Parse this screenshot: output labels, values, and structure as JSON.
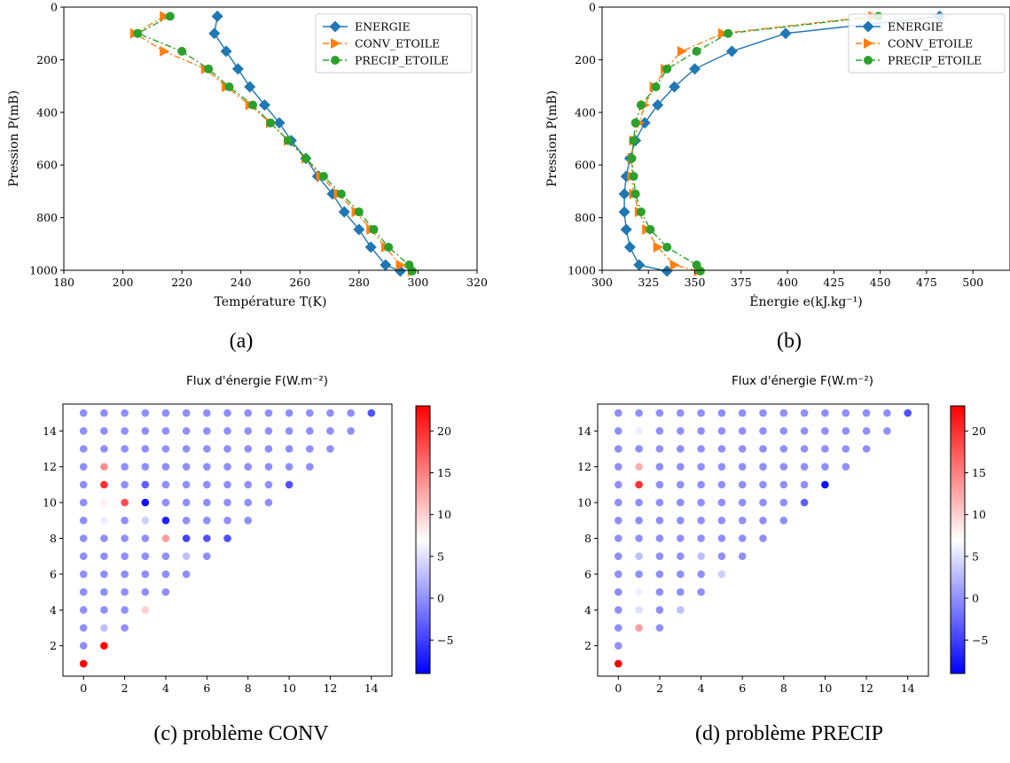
{
  "chart_data": [
    {
      "id": "a",
      "type": "line",
      "caption": "(a)",
      "xlabel": "Température T(K)",
      "ylabel": "Pression P(mB)",
      "xlim": [
        180,
        320
      ],
      "ylim": [
        1000,
        0
      ],
      "xticks": [
        180,
        200,
        220,
        240,
        260,
        280,
        300,
        320
      ],
      "yticks": [
        0,
        200,
        400,
        600,
        800,
        1000
      ],
      "legend_position": "top-right",
      "series": [
        {
          "name": "ENERGIE",
          "color": "#1f77b4",
          "marker": "diamond",
          "linestyle": "solid",
          "points": [
            [
              232,
              35
            ],
            [
              231,
              100
            ],
            [
              235,
              168
            ],
            [
              239,
              235
            ],
            [
              243,
              303
            ],
            [
              248,
              372
            ],
            [
              253,
              440
            ],
            [
              257,
              507
            ],
            [
              262,
              575
            ],
            [
              266,
              643
            ],
            [
              271,
              710
            ],
            [
              275,
              778
            ],
            [
              280,
              845
            ],
            [
              284,
              912
            ],
            [
              289,
              980
            ],
            [
              294,
              1003
            ]
          ]
        },
        {
          "name": "CONV_ETOILE",
          "color": "#ff7f0e",
          "marker": "triangle-right",
          "linestyle": "dashdot",
          "points": [
            [
              214,
              35
            ],
            [
              204,
              100
            ],
            [
              214,
              168
            ],
            [
              228,
              235
            ],
            [
              235,
              303
            ],
            [
              243,
              372
            ],
            [
              250,
              440
            ],
            [
              256,
              507
            ],
            [
              262,
              575
            ],
            [
              267,
              643
            ],
            [
              273,
              710
            ],
            [
              279,
              778
            ],
            [
              284,
              845
            ],
            [
              289,
              912
            ],
            [
              294,
              980
            ],
            [
              298,
              1003
            ]
          ]
        },
        {
          "name": "PRECIP_ETOILE",
          "color": "#2ca02c",
          "marker": "circle",
          "linestyle": "dashdot",
          "points": [
            [
              216,
              35
            ],
            [
              205,
              100
            ],
            [
              220,
              168
            ],
            [
              229,
              235
            ],
            [
              236,
              303
            ],
            [
              244,
              372
            ],
            [
              250,
              440
            ],
            [
              256,
              507
            ],
            [
              262,
              575
            ],
            [
              268,
              643
            ],
            [
              274,
              710
            ],
            [
              280,
              778
            ],
            [
              285,
              845
            ],
            [
              290,
              912
            ],
            [
              297,
              980
            ],
            [
              298,
              1003
            ]
          ]
        }
      ]
    },
    {
      "id": "b",
      "type": "line",
      "caption": "(b)",
      "xlabel": "Énergie e(kJ.kg⁻¹)",
      "ylabel": "Pression P(mB)",
      "xlim": [
        300,
        520
      ],
      "ylim": [
        1000,
        0
      ],
      "xticks": [
        300,
        325,
        350,
        375,
        400,
        425,
        450,
        475,
        500
      ],
      "yticks": [
        0,
        200,
        400,
        600,
        800,
        1000
      ],
      "legend_position": "top-right",
      "series": [
        {
          "name": "ENERGIE",
          "color": "#1f77b4",
          "marker": "diamond",
          "linestyle": "solid",
          "points": [
            [
              482,
              35
            ],
            [
              399,
              100
            ],
            [
              370,
              168
            ],
            [
              350,
              235
            ],
            [
              339,
              303
            ],
            [
              330,
              372
            ],
            [
              323,
              440
            ],
            [
              318,
              507
            ],
            [
              315,
              575
            ],
            [
              313,
              643
            ],
            [
              312,
              710
            ],
            [
              312,
              778
            ],
            [
              313,
              845
            ],
            [
              315,
              912
            ],
            [
              320,
              980
            ],
            [
              335,
              1003
            ]
          ]
        },
        {
          "name": "CONV_ETOILE",
          "color": "#ff7f0e",
          "marker": "triangle-right",
          "linestyle": "dashdot",
          "points": [
            [
              446,
              35
            ],
            [
              365,
              100
            ],
            [
              343,
              168
            ],
            [
              334,
              235
            ],
            [
              328,
              303
            ],
            [
              323,
              372
            ],
            [
              320,
              440
            ],
            [
              317,
              507
            ],
            [
              316,
              575
            ],
            [
              316,
              643
            ],
            [
              317,
              710
            ],
            [
              320,
              778
            ],
            [
              324,
              845
            ],
            [
              330,
              912
            ],
            [
              339,
              980
            ],
            [
              352,
              1003
            ]
          ]
        },
        {
          "name": "PRECIP_ETOILE",
          "color": "#2ca02c",
          "marker": "circle",
          "linestyle": "dashdot",
          "points": [
            [
              449,
              35
            ],
            [
              368,
              100
            ],
            [
              351,
              168
            ],
            [
              335,
              235
            ],
            [
              329,
              303
            ],
            [
              321,
              372
            ],
            [
              318,
              440
            ],
            [
              317,
              507
            ],
            [
              316,
              575
            ],
            [
              317,
              643
            ],
            [
              318,
              710
            ],
            [
              321,
              778
            ],
            [
              326,
              845
            ],
            [
              335,
              912
            ],
            [
              351,
              980
            ],
            [
              353,
              1003
            ]
          ]
        }
      ]
    },
    {
      "id": "c",
      "type": "scatter",
      "title": "Flux d'énergie F(W.m⁻²)",
      "caption": "(c) problème CONV",
      "xlim": [
        -1,
        15
      ],
      "ylim": [
        0.3,
        15.5
      ],
      "xticks": [
        0,
        2,
        4,
        6,
        8,
        10,
        12,
        14
      ],
      "yticks": [
        2,
        4,
        6,
        8,
        10,
        12,
        14
      ],
      "colorbar": {
        "min": -9,
        "max": 23,
        "ticks": [
          -5,
          0,
          5,
          10,
          15,
          20
        ],
        "colormap": "bwr"
      },
      "default_value": 0,
      "overrides": [
        [
          0,
          1,
          23
        ],
        [
          1,
          2,
          23
        ],
        [
          1,
          3,
          3
        ],
        [
          1,
          9,
          6
        ],
        [
          1,
          10,
          8
        ],
        [
          1,
          11,
          20
        ],
        [
          1,
          12,
          14
        ],
        [
          2,
          10,
          18
        ],
        [
          3,
          4,
          10
        ],
        [
          3,
          9,
          4
        ],
        [
          3,
          10,
          -8
        ],
        [
          3,
          11,
          -3
        ],
        [
          4,
          8,
          13
        ],
        [
          4,
          9,
          -7
        ],
        [
          5,
          7,
          3
        ],
        [
          5,
          8,
          -5
        ],
        [
          6,
          8,
          -4
        ],
        [
          7,
          8,
          -4
        ],
        [
          10,
          11,
          -4
        ],
        [
          14,
          15,
          -4
        ]
      ]
    },
    {
      "id": "d",
      "type": "scatter",
      "title": "Flux d'énergie F(W.m⁻²)",
      "caption": "(d) problème PRECIP",
      "xlim": [
        -1,
        15
      ],
      "ylim": [
        0.3,
        15.5
      ],
      "xticks": [
        0,
        2,
        4,
        6,
        8,
        10,
        12,
        14
      ],
      "yticks": [
        2,
        4,
        6,
        8,
        10,
        12,
        14
      ],
      "colorbar": {
        "min": -9,
        "max": 23,
        "ticks": [
          -5,
          0,
          5,
          10,
          15,
          20
        ],
        "colormap": "bwr"
      },
      "default_value": 0,
      "overrides": [
        [
          0,
          1,
          23
        ],
        [
          1,
          2,
          7
        ],
        [
          1,
          3,
          13
        ],
        [
          1,
          4,
          5
        ],
        [
          1,
          5,
          6
        ],
        [
          1,
          7,
          3
        ],
        [
          1,
          11,
          20
        ],
        [
          1,
          12,
          12
        ],
        [
          1,
          14,
          6
        ],
        [
          3,
          4,
          3
        ],
        [
          4,
          7,
          3
        ],
        [
          5,
          6,
          4
        ],
        [
          9,
          10,
          -3
        ],
        [
          10,
          11,
          -8
        ],
        [
          14,
          15,
          -4
        ]
      ]
    }
  ]
}
